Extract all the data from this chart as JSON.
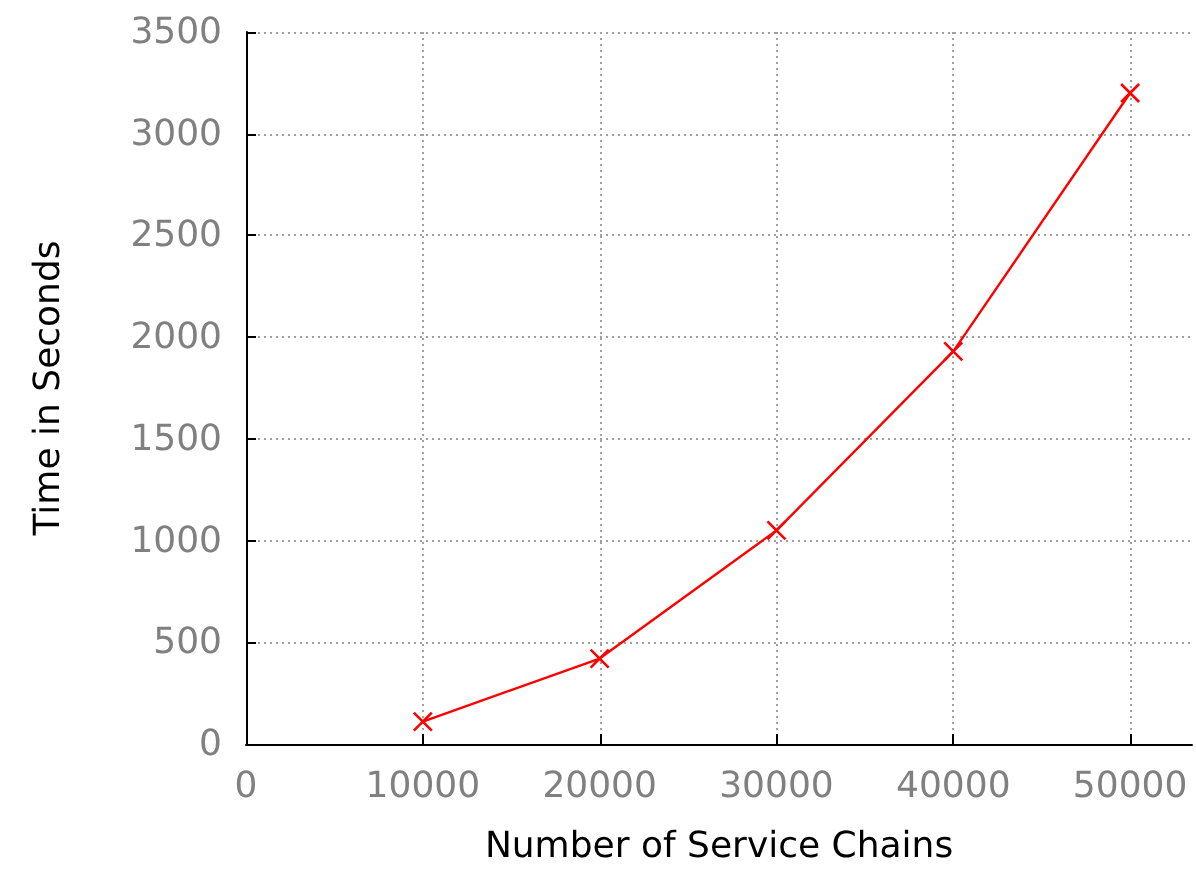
{
  "chart_data": {
    "type": "line",
    "xlabel": "Number of Service Chains",
    "ylabel": "Time in Seconds",
    "x": [
      10000,
      20000,
      30000,
      40000,
      50000
    ],
    "series": [
      {
        "color": "#ff0000",
        "values": [
          110,
          420,
          1050,
          1930,
          3200
        ]
      }
    ],
    "xlim": [
      0,
      53500
    ],
    "xticks": [
      0,
      10000,
      20000,
      30000,
      40000,
      50000
    ],
    "ylim": [
      0,
      3500
    ],
    "yticks": [
      0,
      500,
      1000,
      1500,
      2000,
      2500,
      3000,
      3500
    ],
    "grid": true,
    "marker": "cross",
    "line_style": "solid"
  }
}
